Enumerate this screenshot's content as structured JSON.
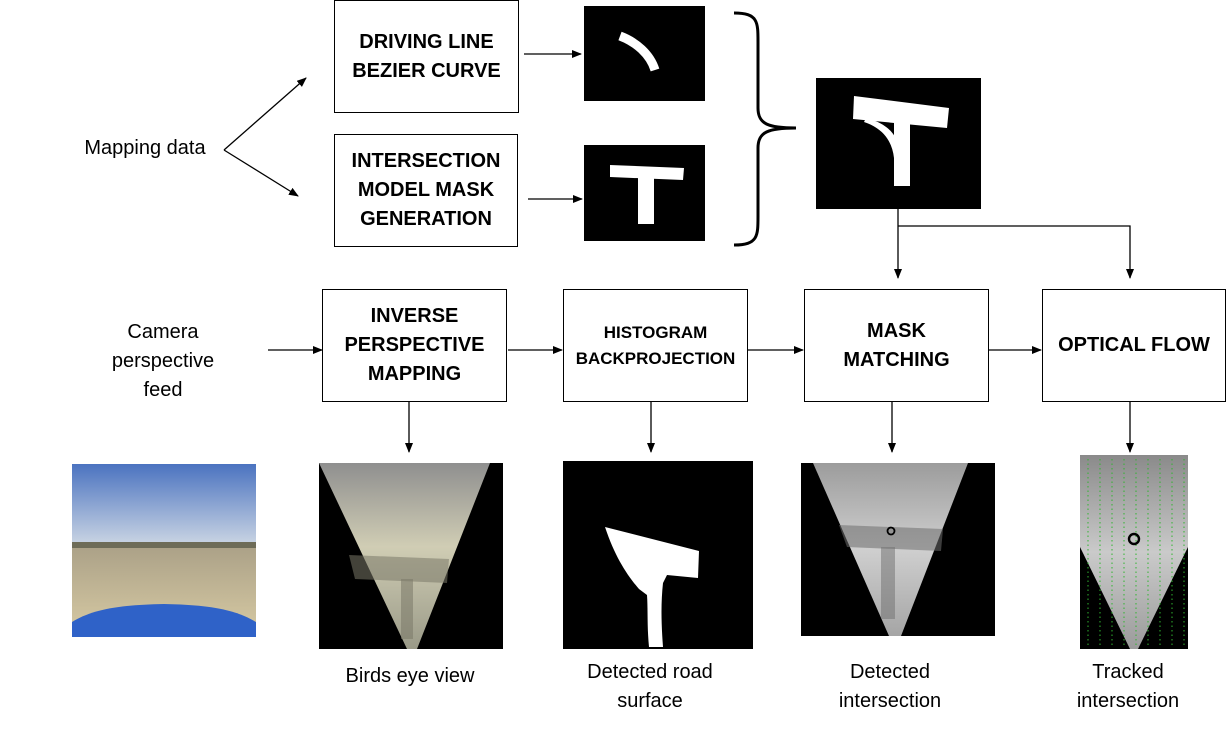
{
  "inputs": {
    "mapping_data": "Mapping data",
    "camera_feed": [
      "Camera",
      "perspective",
      "feed"
    ]
  },
  "boxes": {
    "driving_line": [
      "DRIVING LINE",
      "BEZIER CURVE"
    ],
    "intersection_model": [
      "INTERSECTION",
      "MODEL MASK",
      "GENERATION"
    ],
    "inverse_perspective": [
      "INVERSE",
      "PERSPECTIVE",
      "MAPPING"
    ],
    "histogram": [
      "HISTOGRAM",
      "BACKPROJECTION"
    ],
    "mask_matching": [
      "MASK",
      "MATCHING"
    ],
    "optical_flow": [
      "OPTICAL FLOW"
    ]
  },
  "captions": {
    "birds_eye": [
      "Birds eye view"
    ],
    "road_surface": [
      "Detected road",
      "surface"
    ],
    "detected_intersection": [
      "Detected",
      "intersection"
    ],
    "tracked_intersection": [
      "Tracked",
      "intersection"
    ]
  },
  "colors": {
    "line": "#000000",
    "car_hood": "#2f62c8",
    "sky_top": "#4b73c0",
    "ground": "#cbbf9a",
    "flow_vectors": "#2fb52f"
  }
}
